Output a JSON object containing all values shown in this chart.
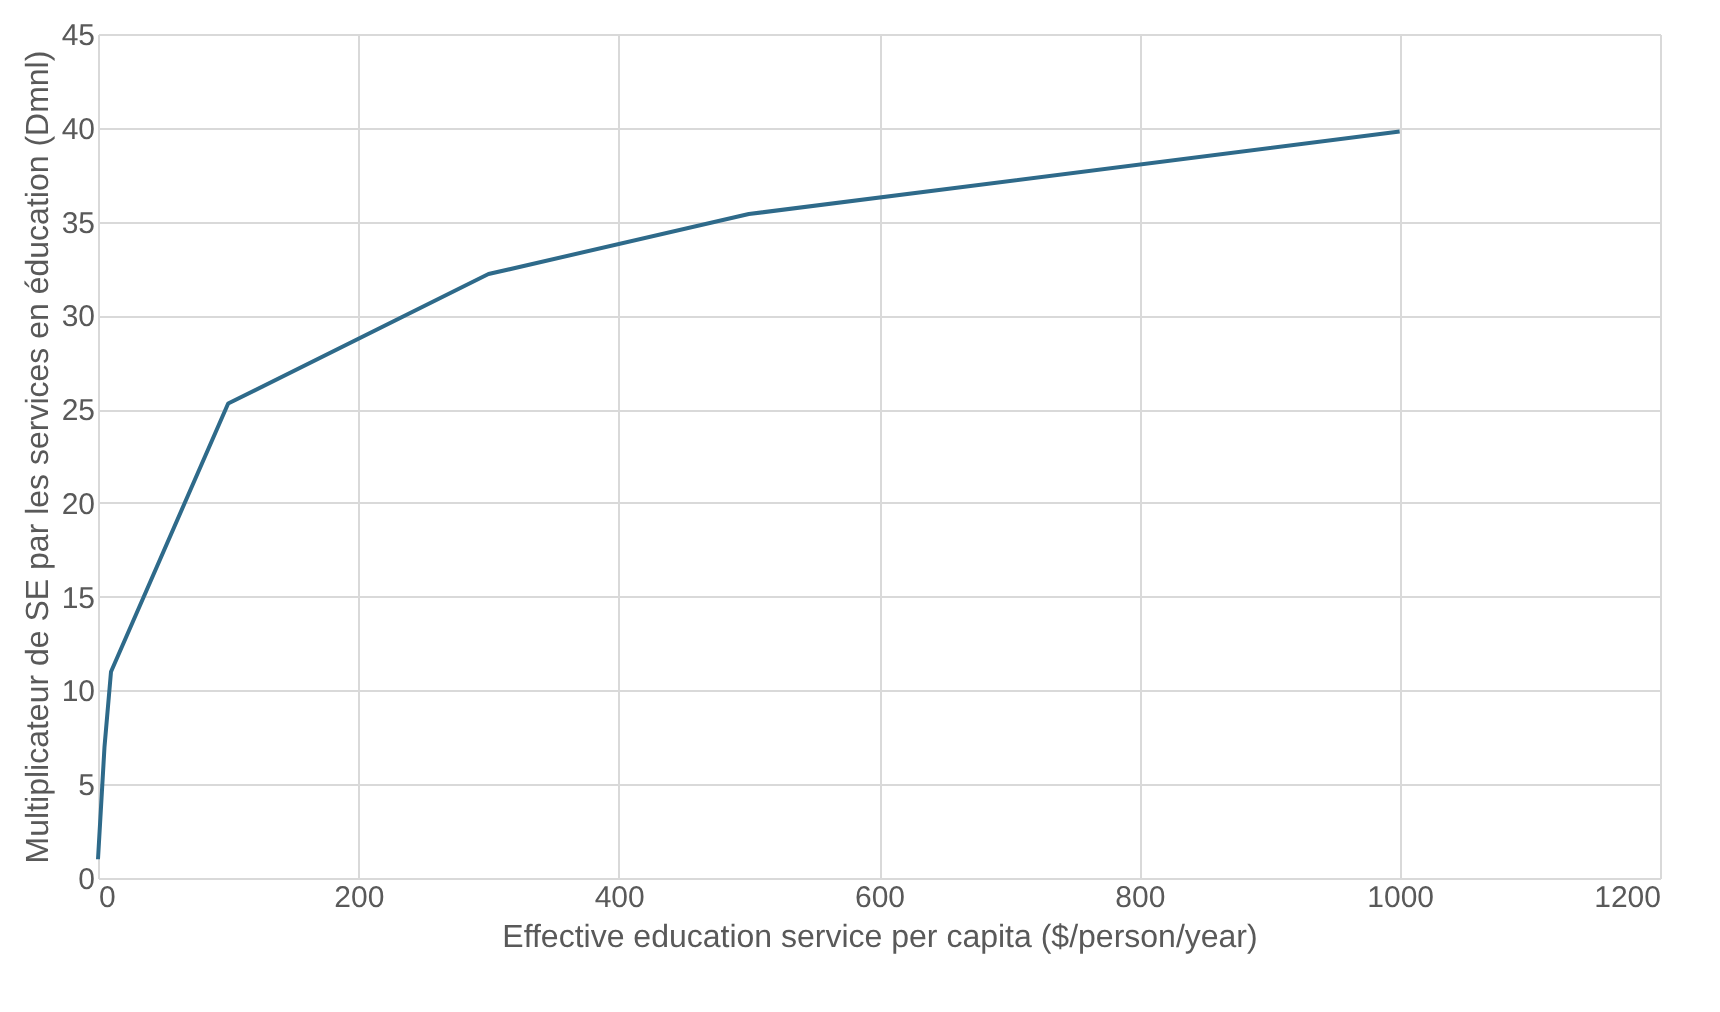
{
  "chart_data": {
    "type": "line",
    "xlabel": "Effective education service per capita ($/person/year)",
    "ylabel": "Multiplicateur de SE par les services en éducation (Dmnl)",
    "x": [
      0,
      5,
      10,
      100,
      300,
      500,
      1000
    ],
    "series": [
      {
        "color": "#2e6a8a",
        "values": [
          1,
          7,
          11,
          25.3,
          32.2,
          35.4,
          39.8
        ]
      }
    ],
    "xlim": [
      0,
      1200
    ],
    "xticks": [
      0,
      200,
      400,
      600,
      800,
      1000,
      1200
    ],
    "ylim": [
      0,
      45
    ],
    "yticks": [
      0,
      5,
      10,
      15,
      20,
      25,
      30,
      35,
      40,
      45
    ],
    "grid": true,
    "marker": "none",
    "line_style": "solid"
  }
}
